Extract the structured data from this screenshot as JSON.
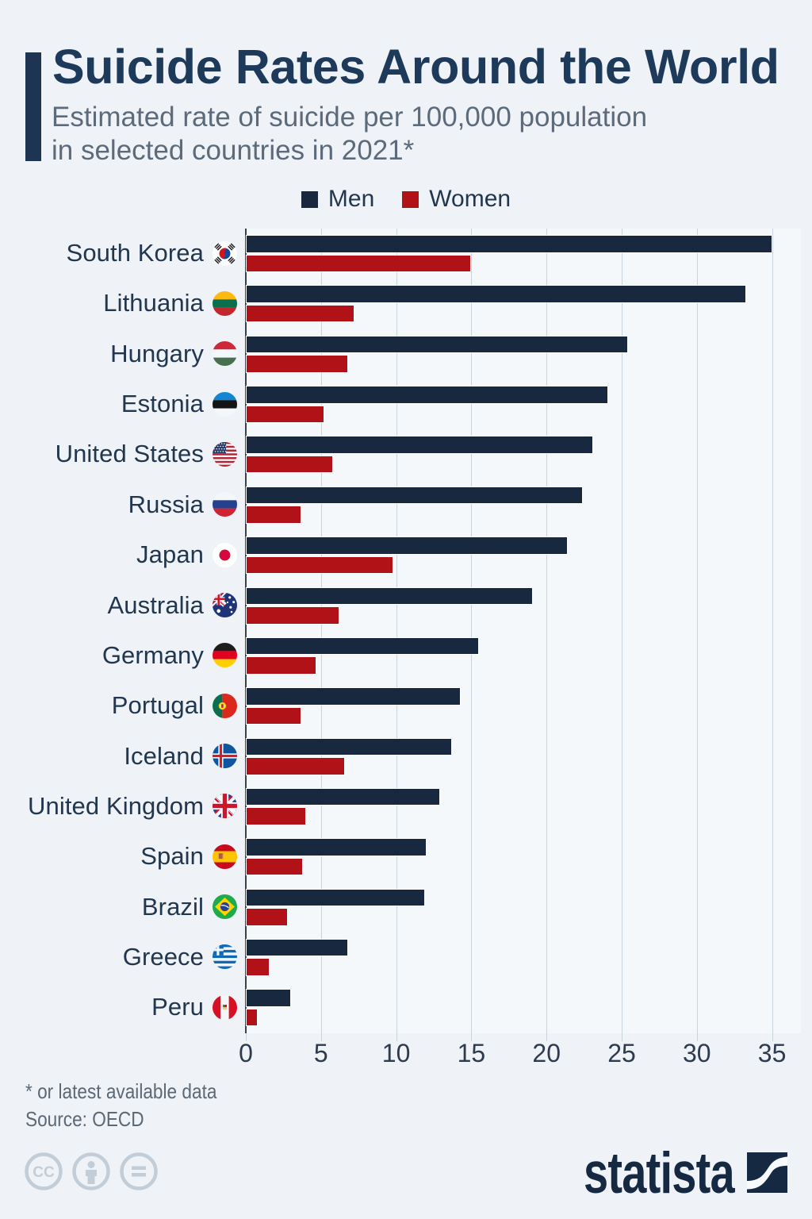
{
  "header": {
    "title": "Suicide Rates Around the World",
    "subtitle_line1": "Estimated rate of suicide per 100,000 population",
    "subtitle_line2": "in selected countries in 2021*"
  },
  "legend": {
    "men": "Men",
    "women": "Women"
  },
  "chart_data": {
    "type": "bar",
    "orientation": "horizontal",
    "title": "Suicide Rates Around the World",
    "xlabel": "",
    "ylabel": "",
    "xlim": [
      0,
      35
    ],
    "ticks": [
      0,
      5,
      10,
      15,
      20,
      25,
      30,
      35
    ],
    "grid": true,
    "legend_position": "top",
    "categories": [
      {
        "label": "South Korea",
        "flag": "south-korea"
      },
      {
        "label": "Lithuania",
        "flag": "lithuania"
      },
      {
        "label": "Hungary",
        "flag": "hungary"
      },
      {
        "label": "Estonia",
        "flag": "estonia"
      },
      {
        "label": "United States",
        "flag": "united-states"
      },
      {
        "label": "Russia",
        "flag": "russia"
      },
      {
        "label": "Japan",
        "flag": "japan"
      },
      {
        "label": "Australia",
        "flag": "australia"
      },
      {
        "label": "Germany",
        "flag": "germany"
      },
      {
        "label": "Portugal",
        "flag": "portugal"
      },
      {
        "label": "Iceland",
        "flag": "iceland"
      },
      {
        "label": "United Kingdom",
        "flag": "united-kingdom"
      },
      {
        "label": "Spain",
        "flag": "spain"
      },
      {
        "label": "Brazil",
        "flag": "brazil"
      },
      {
        "label": "Greece",
        "flag": "greece"
      },
      {
        "label": "Peru",
        "flag": "peru"
      }
    ],
    "series": [
      {
        "name": "Men",
        "color": "#18283f",
        "values": [
          35.0,
          33.3,
          25.4,
          24.1,
          23.1,
          22.4,
          21.4,
          19.1,
          15.5,
          14.3,
          13.7,
          12.9,
          12.0,
          11.9,
          6.8,
          3.0
        ]
      },
      {
        "name": "Women",
        "color": "#b01218",
        "values": [
          15.0,
          7.2,
          6.8,
          5.2,
          5.8,
          3.7,
          9.8,
          6.2,
          4.7,
          3.7,
          6.6,
          4.0,
          3.8,
          2.8,
          1.6,
          0.8
        ]
      }
    ]
  },
  "colors": {
    "men": "#18283f",
    "women": "#b01218",
    "background": "#eff3f8",
    "accent": "#1d3552"
  },
  "footer": {
    "footnote": "* or latest available data",
    "source": "Source: OECD"
  },
  "branding": {
    "logo_text": "statista",
    "license_icons": [
      "cc",
      "attribution",
      "no-derivatives"
    ]
  }
}
